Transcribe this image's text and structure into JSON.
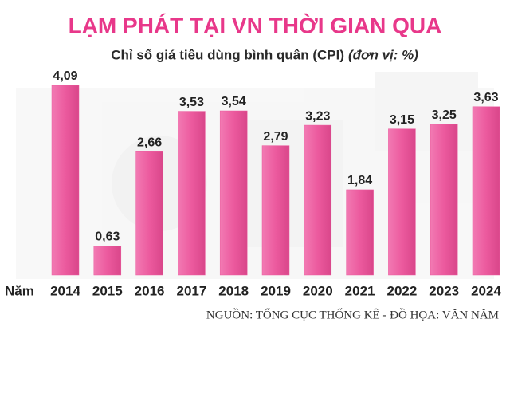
{
  "chart_data": {
    "type": "bar",
    "title": "LẠM PHÁT TẠI VN THỜI GIAN QUA",
    "subtitle": "Chỉ số giá tiêu dùng bình quân (CPI)",
    "unit_note": "(đơn vị: %)",
    "x_label": "Năm",
    "categories": [
      "2014",
      "2015",
      "2016",
      "2017",
      "2018",
      "2019",
      "2020",
      "2021",
      "2022",
      "2023",
      "2024"
    ],
    "values": [
      4.09,
      0.63,
      2.66,
      3.53,
      3.54,
      2.79,
      3.23,
      1.84,
      3.15,
      3.25,
      3.63
    ],
    "value_labels": [
      "4,09",
      "0,63",
      "2,66",
      "3,53",
      "3,54",
      "2,79",
      "3,23",
      "1,84",
      "3,15",
      "3,25",
      "3,63"
    ],
    "color": "#ec5a9e",
    "source": "NGUỒN: TỔNG CỤC THỐNG KÊ - ĐỒ HỌA: VĂN NĂM"
  }
}
